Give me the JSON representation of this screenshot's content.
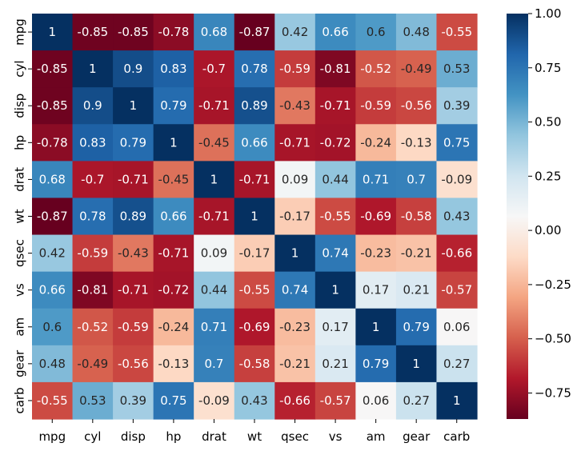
{
  "chart_data": {
    "type": "heatmap",
    "title": "",
    "xlabel": "",
    "ylabel": "",
    "variables": [
      "mpg",
      "cyl",
      "disp",
      "hp",
      "drat",
      "wt",
      "qsec",
      "vs",
      "am",
      "gear",
      "carb"
    ],
    "values": [
      [
        1,
        -0.85,
        -0.85,
        -0.78,
        0.68,
        -0.87,
        0.42,
        0.66,
        0.6,
        0.48,
        -0.55
      ],
      [
        -0.85,
        1,
        0.9,
        0.83,
        -0.7,
        0.78,
        -0.59,
        -0.81,
        -0.52,
        -0.49,
        0.53
      ],
      [
        -0.85,
        0.9,
        1,
        0.79,
        -0.71,
        0.89,
        -0.43,
        -0.71,
        -0.59,
        -0.56,
        0.39
      ],
      [
        -0.78,
        0.83,
        0.79,
        1,
        -0.45,
        0.66,
        -0.71,
        -0.72,
        -0.24,
        -0.13,
        0.75
      ],
      [
        0.68,
        -0.7,
        -0.71,
        -0.45,
        1,
        -0.71,
        0.09,
        0.44,
        0.71,
        0.7,
        -0.09
      ],
      [
        -0.87,
        0.78,
        0.89,
        0.66,
        -0.71,
        1,
        -0.17,
        -0.55,
        -0.69,
        -0.58,
        0.43
      ],
      [
        0.42,
        -0.59,
        -0.43,
        -0.71,
        0.09,
        -0.17,
        1,
        0.74,
        -0.23,
        -0.21,
        -0.66
      ],
      [
        0.66,
        -0.81,
        -0.71,
        -0.72,
        0.44,
        -0.55,
        0.74,
        1,
        0.17,
        0.21,
        -0.57
      ],
      [
        0.6,
        -0.52,
        -0.59,
        -0.24,
        0.71,
        -0.69,
        -0.23,
        0.17,
        1,
        0.79,
        0.06
      ],
      [
        0.48,
        -0.49,
        -0.56,
        -0.13,
        0.7,
        -0.58,
        -0.21,
        0.21,
        0.79,
        1,
        0.27
      ],
      [
        -0.55,
        0.53,
        0.39,
        0.75,
        -0.09,
        0.43,
        -0.66,
        -0.57,
        0.06,
        0.27,
        1
      ]
    ],
    "value_labels": [
      [
        "1",
        "-0.85",
        "-0.85",
        "-0.78",
        "0.68",
        "-0.87",
        "0.42",
        "0.66",
        "0.6",
        "0.48",
        "-0.55"
      ],
      [
        "-0.85",
        "1",
        "0.9",
        "0.83",
        "-0.7",
        "0.78",
        "-0.59",
        "-0.81",
        "-0.52",
        "-0.49",
        "0.53"
      ],
      [
        "-0.85",
        "0.9",
        "1",
        "0.79",
        "-0.71",
        "0.89",
        "-0.43",
        "-0.71",
        "-0.59",
        "-0.56",
        "0.39"
      ],
      [
        "-0.78",
        "0.83",
        "0.79",
        "1",
        "-0.45",
        "0.66",
        "-0.71",
        "-0.72",
        "-0.24",
        "-0.13",
        "0.75"
      ],
      [
        "0.68",
        "-0.7",
        "-0.71",
        "-0.45",
        "1",
        "-0.71",
        "0.09",
        "0.44",
        "0.71",
        "0.7",
        "-0.09"
      ],
      [
        "-0.87",
        "0.78",
        "0.89",
        "0.66",
        "-0.71",
        "1",
        "-0.17",
        "-0.55",
        "-0.69",
        "-0.58",
        "0.43"
      ],
      [
        "0.42",
        "-0.59",
        "-0.43",
        "-0.71",
        "0.09",
        "-0.17",
        "1",
        "0.74",
        "-0.23",
        "-0.21",
        "-0.66"
      ],
      [
        "0.66",
        "-0.81",
        "-0.71",
        "-0.72",
        "0.44",
        "-0.55",
        "0.74",
        "1",
        "0.17",
        "0.21",
        "-0.57"
      ],
      [
        "0.6",
        "-0.52",
        "-0.59",
        "-0.24",
        "0.71",
        "-0.69",
        "-0.23",
        "0.17",
        "1",
        "0.79",
        "0.06"
      ],
      [
        "0.48",
        "-0.49",
        "-0.56",
        "-0.13",
        "0.7",
        "-0.58",
        "-0.21",
        "0.21",
        "0.79",
        "1",
        "0.27"
      ],
      [
        "-0.55",
        "0.53",
        "0.39",
        "0.75",
        "-0.09",
        "0.43",
        "-0.66",
        "-0.57",
        "0.06",
        "0.27",
        "1"
      ]
    ],
    "colormap": "RdBu",
    "color_range": [
      -0.87,
      1.0
    ],
    "colorbar": {
      "ticks": [
        1.0,
        0.75,
        0.5,
        0.25,
        0.0,
        -0.25,
        -0.5,
        -0.75
      ],
      "tick_labels": [
        "1.00",
        "0.75",
        "0.50",
        "0.25",
        "0.00",
        "−0.25",
        "−0.50",
        "−0.75"
      ],
      "placement": "right"
    }
  }
}
